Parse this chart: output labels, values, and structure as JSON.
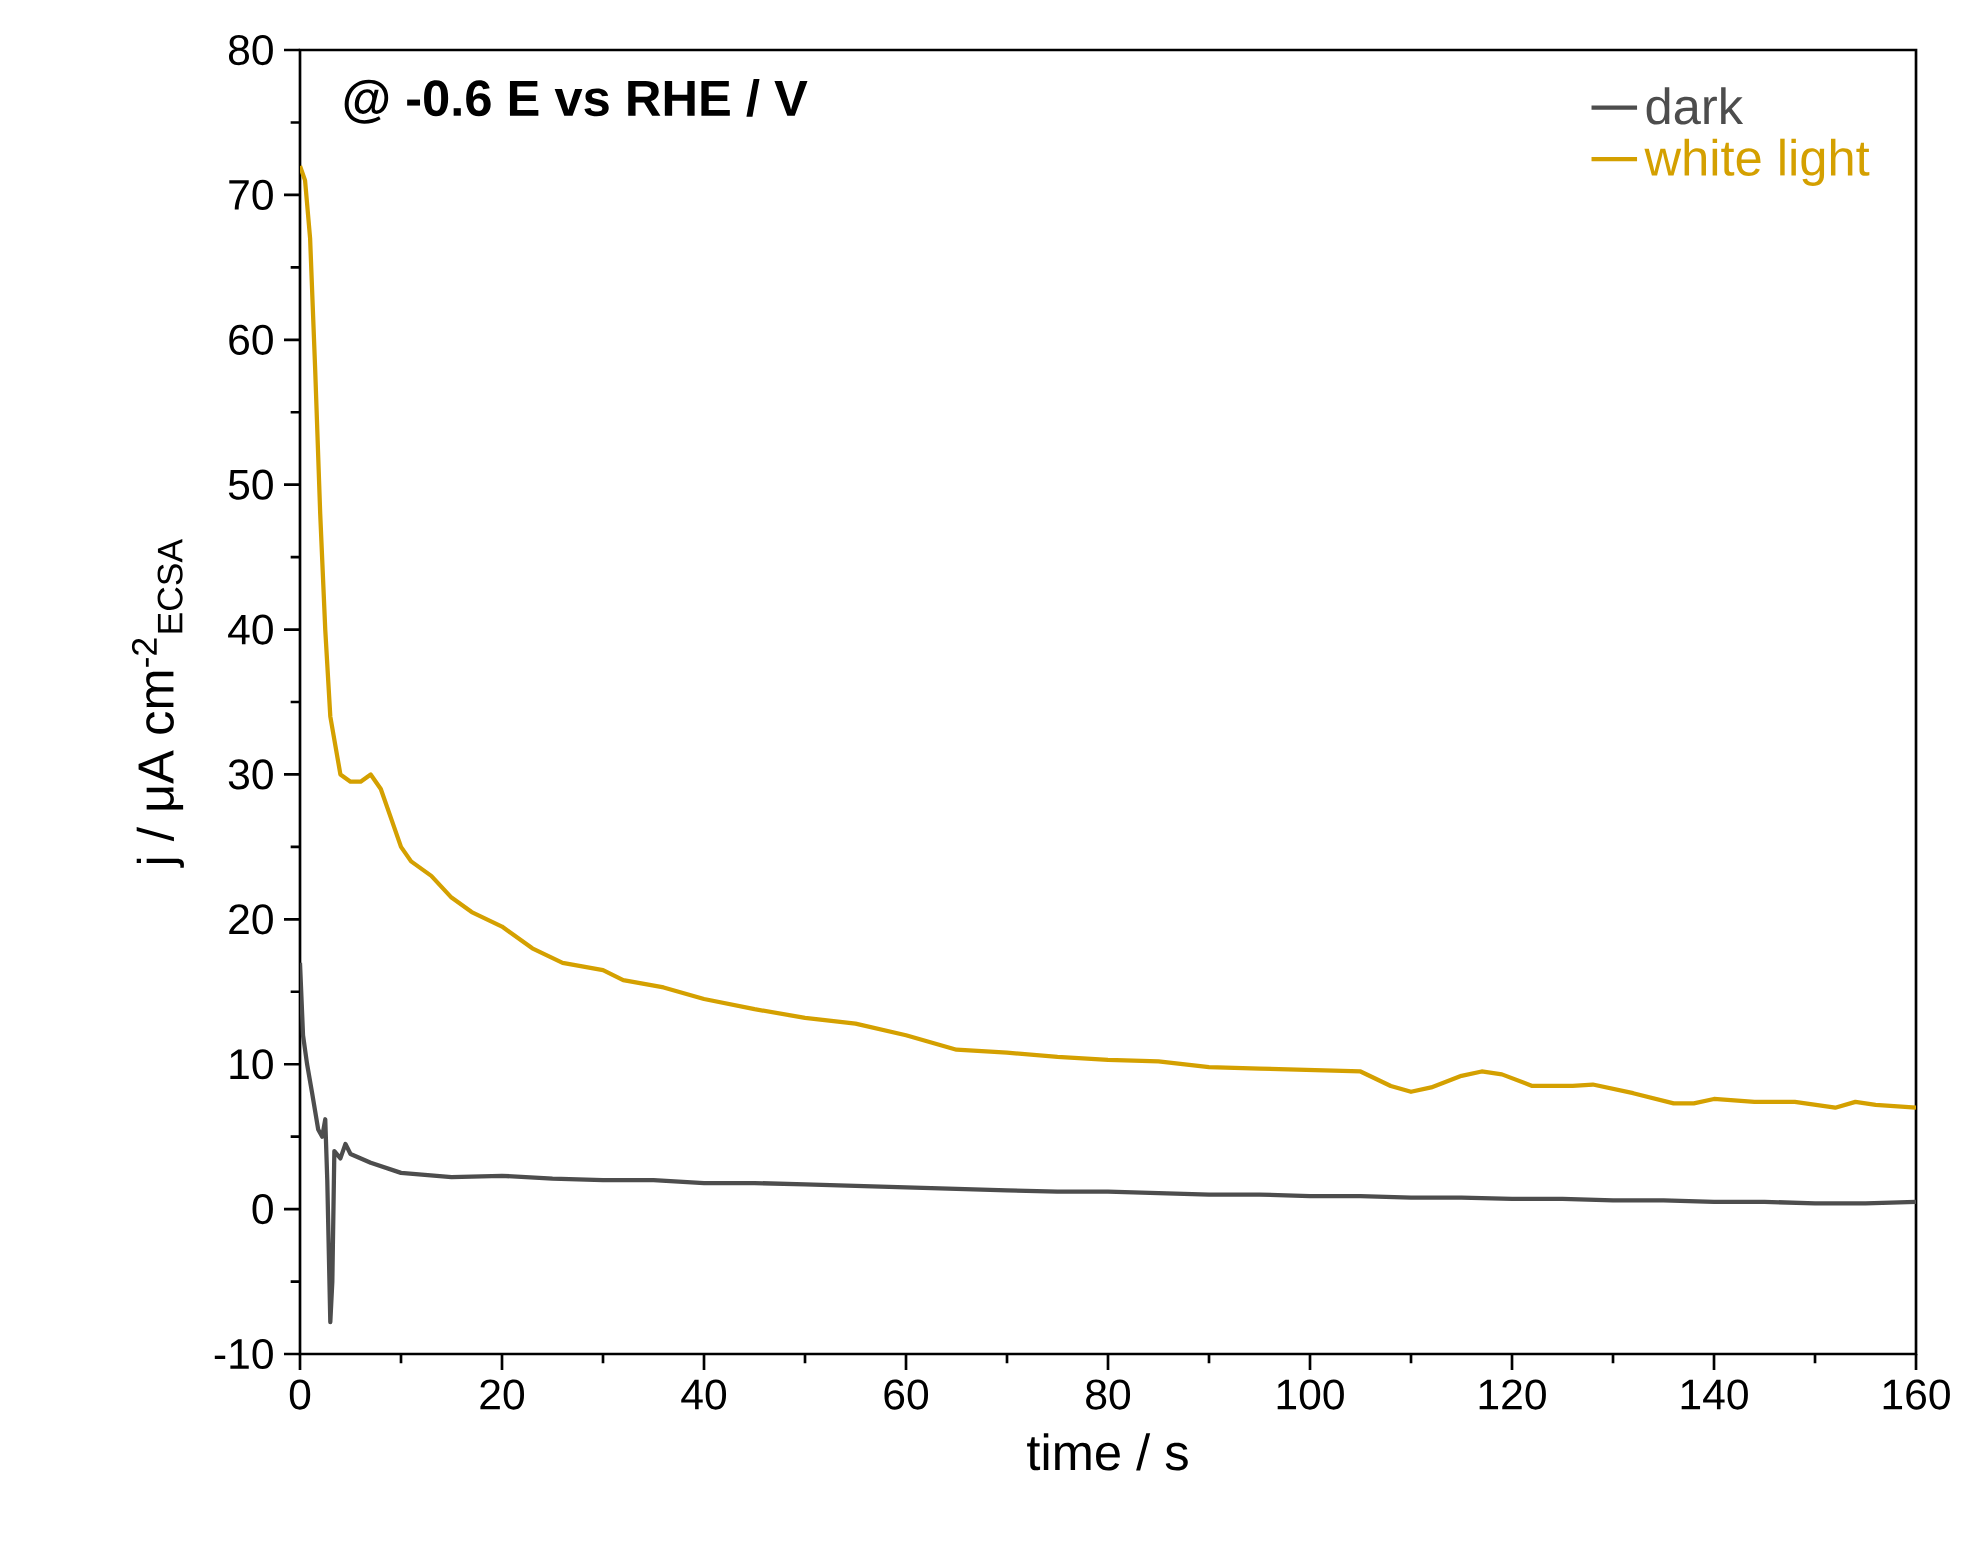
{
  "chart_data": {
    "type": "line",
    "xlabel": "time / s",
    "ylabel": "j / μA cm$^{-2}$$_{ECSA}$",
    "annotations": [
      "**@ -0.6 E vs RHE / V**"
    ],
    "xlim": [
      0,
      160
    ],
    "ylim": [
      -10,
      80
    ],
    "xticks": [
      0,
      20,
      40,
      60,
      80,
      100,
      120,
      140,
      160
    ],
    "yticks": [
      -10,
      0,
      10,
      20,
      30,
      40,
      50,
      60,
      70,
      80
    ],
    "grid": false,
    "legend": "top right",
    "line_style": "solid",
    "marker": "none",
    "series": [
      {
        "name": "dark",
        "color": "#4d4d4d",
        "x": [
          0,
          0.3,
          0.7,
          1.2,
          1.8,
          2.2,
          2.5,
          2.7,
          3,
          3.2,
          3.4,
          4,
          4.5,
          5,
          7,
          10,
          15,
          20,
          25,
          30,
          35,
          40,
          45,
          50,
          55,
          60,
          65,
          70,
          75,
          80,
          85,
          90,
          95,
          100,
          105,
          110,
          115,
          120,
          125,
          130,
          135,
          140,
          145,
          150,
          155,
          160
        ],
        "values": [
          17,
          12,
          10,
          8,
          5.5,
          5,
          6.2,
          2,
          -7.8,
          -5,
          4,
          3.5,
          4.5,
          3.8,
          3.2,
          2.5,
          2.2,
          2.3,
          2.1,
          2.0,
          2.0,
          1.8,
          1.8,
          1.7,
          1.6,
          1.5,
          1.4,
          1.3,
          1.2,
          1.2,
          1.1,
          1.0,
          1.0,
          0.9,
          0.9,
          0.8,
          0.8,
          0.7,
          0.7,
          0.6,
          0.6,
          0.5,
          0.5,
          0.4,
          0.4,
          0.5
        ]
      },
      {
        "name": "white light",
        "color": "#d4a000",
        "x": [
          0,
          0.5,
          1,
          1.5,
          2,
          2.5,
          3,
          4,
          5,
          6,
          7,
          8,
          9,
          10,
          11,
          13,
          15,
          17,
          20,
          23,
          26,
          30,
          32,
          36,
          40,
          45,
          50,
          55,
          60,
          65,
          70,
          75,
          80,
          85,
          90,
          95,
          100,
          105,
          108,
          110,
          112,
          115,
          117,
          119,
          122,
          126,
          128,
          132,
          136,
          138,
          140,
          144,
          148,
          152,
          154,
          156,
          160
        ],
        "values": [
          72,
          71,
          67,
          58,
          48,
          40,
          34,
          30,
          29.5,
          29.5,
          30,
          29,
          27,
          25,
          24,
          23,
          21.5,
          20.5,
          19.5,
          18,
          17,
          16.5,
          15.8,
          15.3,
          14.5,
          13.8,
          13.2,
          12.8,
          12,
          11,
          10.8,
          10.5,
          10.3,
          10.2,
          9.8,
          9.7,
          9.6,
          9.5,
          8.5,
          8.1,
          8.4,
          9.2,
          9.5,
          9.3,
          8.5,
          8.5,
          8.6,
          8.0,
          7.3,
          7.3,
          7.6,
          7.4,
          7.4,
          7.0,
          7.4,
          7.2,
          7.0
        ]
      }
    ]
  }
}
